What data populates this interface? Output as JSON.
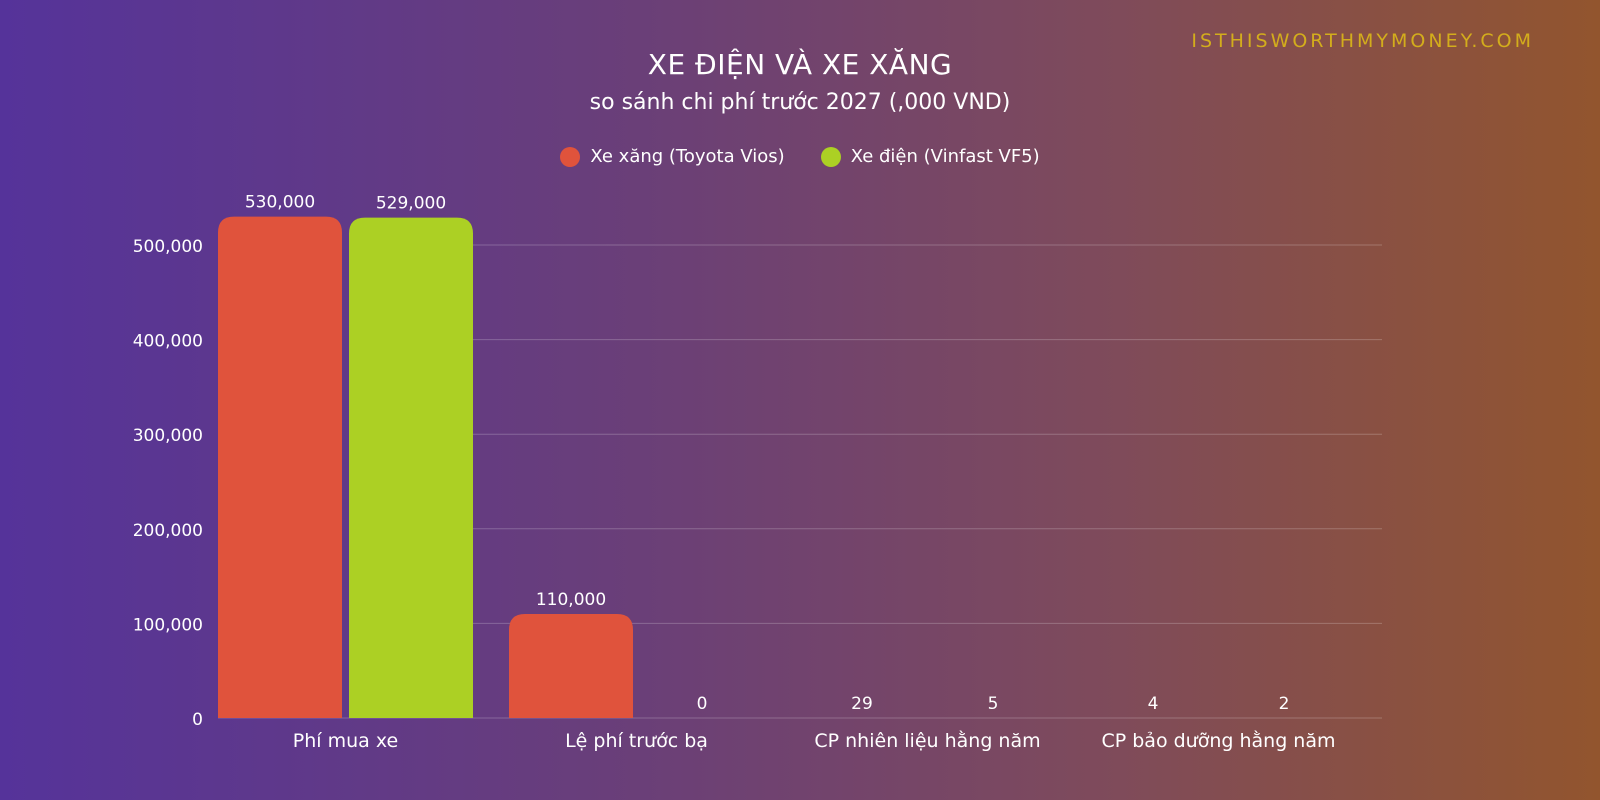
{
  "watermark": "ISTHISWORTHMYMONEY.COM",
  "colors": {
    "petrol": "#e0533c",
    "electric": "#acd024",
    "grid": "rgba(255,255,255,0.22)"
  },
  "chart_data": {
    "type": "bar",
    "title": "XE ĐIỆN VÀ XE XĂNG",
    "subtitle": "so sánh chi phí trước 2027 (,000 VND)",
    "xlabel": "",
    "ylabel": "",
    "ylim": [
      0,
      500000
    ],
    "yticks": [
      0,
      100000,
      200000,
      300000,
      400000,
      500000
    ],
    "ytick_labels": [
      "0",
      "100,000",
      "200,000",
      "300,000",
      "400,000",
      "500,000"
    ],
    "grid": true,
    "legend_position": "top-center",
    "categories": [
      "Phí mua xe",
      "Lệ phí trước bạ",
      "CP nhiên liệu hằng năm",
      "CP bảo dưỡng hằng năm"
    ],
    "series": [
      {
        "name": "Xe xăng (Toyota Vios)",
        "color": "#e0533c",
        "values": [
          530000,
          110000,
          29,
          4
        ],
        "value_labels": [
          "530,000",
          "110,000",
          "29",
          "4"
        ]
      },
      {
        "name": "Xe điện (Vinfast VF5)",
        "color": "#acd024",
        "values": [
          529000,
          0,
          5,
          2
        ],
        "value_labels": [
          "529,000",
          "0",
          "5",
          "2"
        ]
      }
    ]
  }
}
